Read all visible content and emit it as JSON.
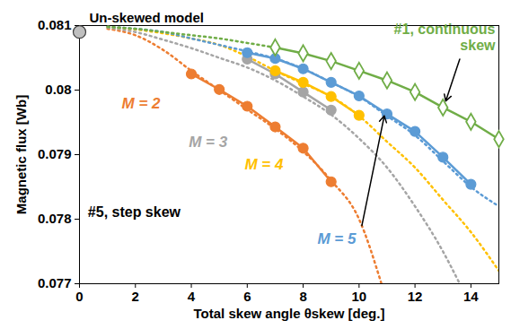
{
  "chart_data": {
    "type": "line",
    "x_label": "Total skew angle θskew [deg.]",
    "y_label": "Magnetic flux [Wb]",
    "xlim": [
      0,
      15
    ],
    "ylim": [
      0.077,
      0.081
    ],
    "xticks": [
      0,
      2,
      4,
      6,
      8,
      10,
      12,
      14
    ],
    "yticks": [
      0.077,
      0.078,
      0.079,
      0.08,
      0.081
    ],
    "grid": false,
    "annotations": [
      "#5, step skew"
    ],
    "series": [
      {
        "name": "Un-skewed model",
        "type": "scatter",
        "color": "#bfbfbf",
        "marker": "circle",
        "x": [
          0
        ],
        "values": [
          0.0809
        ]
      },
      {
        "name": "M = 2",
        "color": "#ed7d31",
        "marker": "circle",
        "line_style": "solid",
        "x": [
          4,
          5,
          6,
          7,
          8,
          9
        ],
        "values": [
          0.08025,
          0.08001,
          0.07975,
          0.07943,
          0.0791,
          0.07858
        ],
        "trend": {
          "line_style": "dotted",
          "x": [
            1,
            2,
            3,
            4,
            5,
            6,
            7,
            8,
            9,
            10,
            10.8
          ],
          "values": [
            0.08095,
            0.08085,
            0.08062,
            0.0803,
            0.08,
            0.0797,
            0.0794,
            0.07905,
            0.0786,
            0.078,
            0.077
          ]
        }
      },
      {
        "name": "M = 3",
        "color": "#a5a5a5",
        "marker": "circle",
        "line_style": "solid",
        "x": [
          6,
          7,
          8,
          9
        ],
        "values": [
          0.08048,
          0.08025,
          0.07997,
          0.07969
        ],
        "trend": {
          "line_style": "dotted",
          "x": [
            1,
            2,
            3,
            4,
            5,
            6,
            7,
            8,
            9,
            10,
            11,
            12,
            13,
            13.6
          ],
          "values": [
            0.08097,
            0.0809,
            0.08078,
            0.08065,
            0.0805,
            0.08035,
            0.08015,
            0.0799,
            0.07962,
            0.07925,
            0.0788,
            0.0782,
            0.0775,
            0.077
          ]
        }
      },
      {
        "name": "M = 4",
        "color": "#ffc000",
        "marker": "circle",
        "line_style": "solid",
        "x": [
          7,
          8,
          9,
          10
        ],
        "values": [
          0.0803,
          0.08012,
          0.0799,
          0.07961
        ],
        "trend": {
          "line_style": "dotted",
          "x": [
            1,
            2,
            3,
            4,
            5,
            6,
            7,
            8,
            9,
            10,
            11,
            12,
            13,
            14,
            15
          ],
          "values": [
            0.08098,
            0.08094,
            0.08088,
            0.0808,
            0.0807,
            0.08052,
            0.0803,
            0.0801,
            0.0799,
            0.0796,
            0.0792,
            0.0788,
            0.0783,
            0.0778,
            0.0772
          ]
        }
      },
      {
        "name": "M = 5",
        "color": "#5b9bd5",
        "marker": "circle",
        "line_style": "solid",
        "x": [
          6,
          7,
          8,
          9,
          10,
          11,
          12,
          13,
          14
        ],
        "values": [
          0.08058,
          0.08049,
          0.08033,
          0.08012,
          0.07991,
          0.07963,
          0.07936,
          0.07896,
          0.07854
        ],
        "trend": {
          "line_style": "dotted",
          "x": [
            1,
            2,
            3,
            4,
            5,
            6,
            7,
            8,
            9,
            10,
            11,
            12,
            13,
            14,
            15
          ],
          "values": [
            0.08098,
            0.08095,
            0.0809,
            0.0808,
            0.0807,
            0.0806,
            0.08049,
            0.08033,
            0.08012,
            0.0799,
            0.0796,
            0.0793,
            0.0789,
            0.0785,
            0.0782
          ]
        }
      },
      {
        "name": "#1, continuous skew",
        "color": "#70ad47",
        "marker": "diamond",
        "line_style": "solid",
        "x": [
          7,
          8,
          9,
          10,
          11,
          12,
          13,
          14,
          15
        ],
        "values": [
          0.08066,
          0.08057,
          0.08045,
          0.0803,
          0.08015,
          0.07997,
          0.07973,
          0.07951,
          0.07924
        ],
        "trend": {
          "line_style": "dotted",
          "x": [
            1,
            2,
            3,
            4,
            5,
            6,
            7
          ],
          "values": [
            0.08098,
            0.08095,
            0.0809,
            0.08085,
            0.0808,
            0.08073,
            0.08066
          ]
        }
      }
    ]
  }
}
